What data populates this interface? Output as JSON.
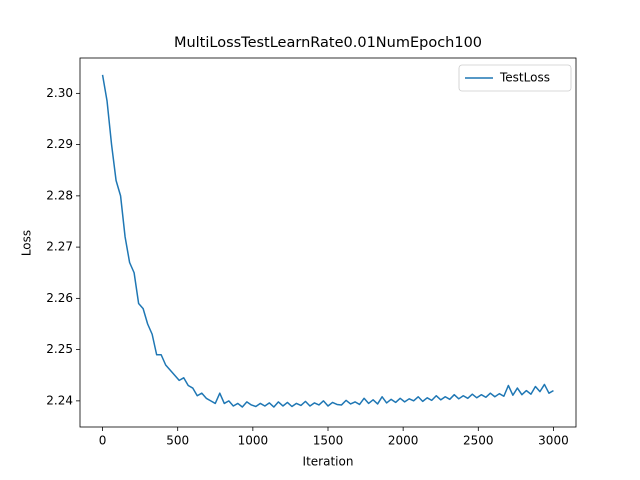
{
  "chart_data": {
    "type": "line",
    "title": "MultiLossTestLearnRate0.01NumEpoch100",
    "x_label": "Iteration",
    "y_label": "Loss",
    "legend": "upper right",
    "xlim": [
      -150,
      3150
    ],
    "ylim": [
      2.2349,
      2.3069
    ],
    "xticks": [
      0,
      500,
      1000,
      1500,
      2000,
      2500,
      3000
    ],
    "yticks": [
      2.24,
      2.25,
      2.26,
      2.27,
      2.28,
      2.29,
      {
        "value": 2.3,
        "label": "2.30"
      }
    ],
    "x": [
      0,
      30,
      60,
      90,
      120,
      150,
      180,
      210,
      240,
      270,
      300,
      330,
      360,
      390,
      420,
      450,
      480,
      510,
      540,
      570,
      600,
      630,
      660,
      690,
      720,
      750,
      780,
      810,
      840,
      870,
      900,
      930,
      960,
      990,
      1020,
      1050,
      1080,
      1110,
      1140,
      1170,
      1200,
      1230,
      1260,
      1290,
      1320,
      1350,
      1380,
      1410,
      1440,
      1470,
      1500,
      1530,
      1560,
      1590,
      1620,
      1650,
      1680,
      1710,
      1740,
      1770,
      1800,
      1830,
      1860,
      1890,
      1920,
      1950,
      1980,
      2010,
      2040,
      2070,
      2100,
      2130,
      2160,
      2190,
      2220,
      2250,
      2280,
      2310,
      2340,
      2370,
      2400,
      2430,
      2460,
      2490,
      2520,
      2550,
      2580,
      2610,
      2640,
      2670,
      2700,
      2730,
      2760,
      2790,
      2820,
      2850,
      2880,
      2910,
      2940,
      2970,
      3000
    ],
    "series": [
      {
        "name": "TestLoss",
        "color": "#1f77b4",
        "values": [
          2.3036,
          2.2985,
          2.29,
          2.283,
          2.28,
          2.272,
          2.267,
          2.265,
          2.259,
          2.258,
          2.255,
          2.253,
          2.249,
          2.249,
          2.247,
          2.246,
          2.245,
          2.244,
          2.2445,
          2.243,
          2.2425,
          2.241,
          2.2415,
          2.2405,
          2.24,
          2.2395,
          2.2415,
          2.2395,
          2.24,
          2.239,
          2.2395,
          2.2388,
          2.2398,
          2.2392,
          2.2389,
          2.2395,
          2.239,
          2.2396,
          2.2388,
          2.2398,
          2.239,
          2.2397,
          2.2389,
          2.2395,
          2.2391,
          2.2399,
          2.239,
          2.2396,
          2.2392,
          2.24,
          2.239,
          2.2397,
          2.2393,
          2.2392,
          2.2401,
          2.2394,
          2.2398,
          2.2393,
          2.2405,
          2.2395,
          2.2402,
          2.2394,
          2.2408,
          2.2396,
          2.2403,
          2.2397,
          2.2405,
          2.2398,
          2.2404,
          2.24,
          2.2408,
          2.2399,
          2.2406,
          2.2401,
          2.241,
          2.2402,
          2.2408,
          2.2403,
          2.2412,
          2.2404,
          2.241,
          2.2405,
          2.2413,
          2.2406,
          2.2412,
          2.2407,
          2.2415,
          2.2408,
          2.2414,
          2.2409,
          2.243,
          2.2411,
          2.2425,
          2.2412,
          2.242,
          2.2413,
          2.2428,
          2.2418,
          2.2432,
          2.2415,
          2.242
        ]
      }
    ]
  }
}
